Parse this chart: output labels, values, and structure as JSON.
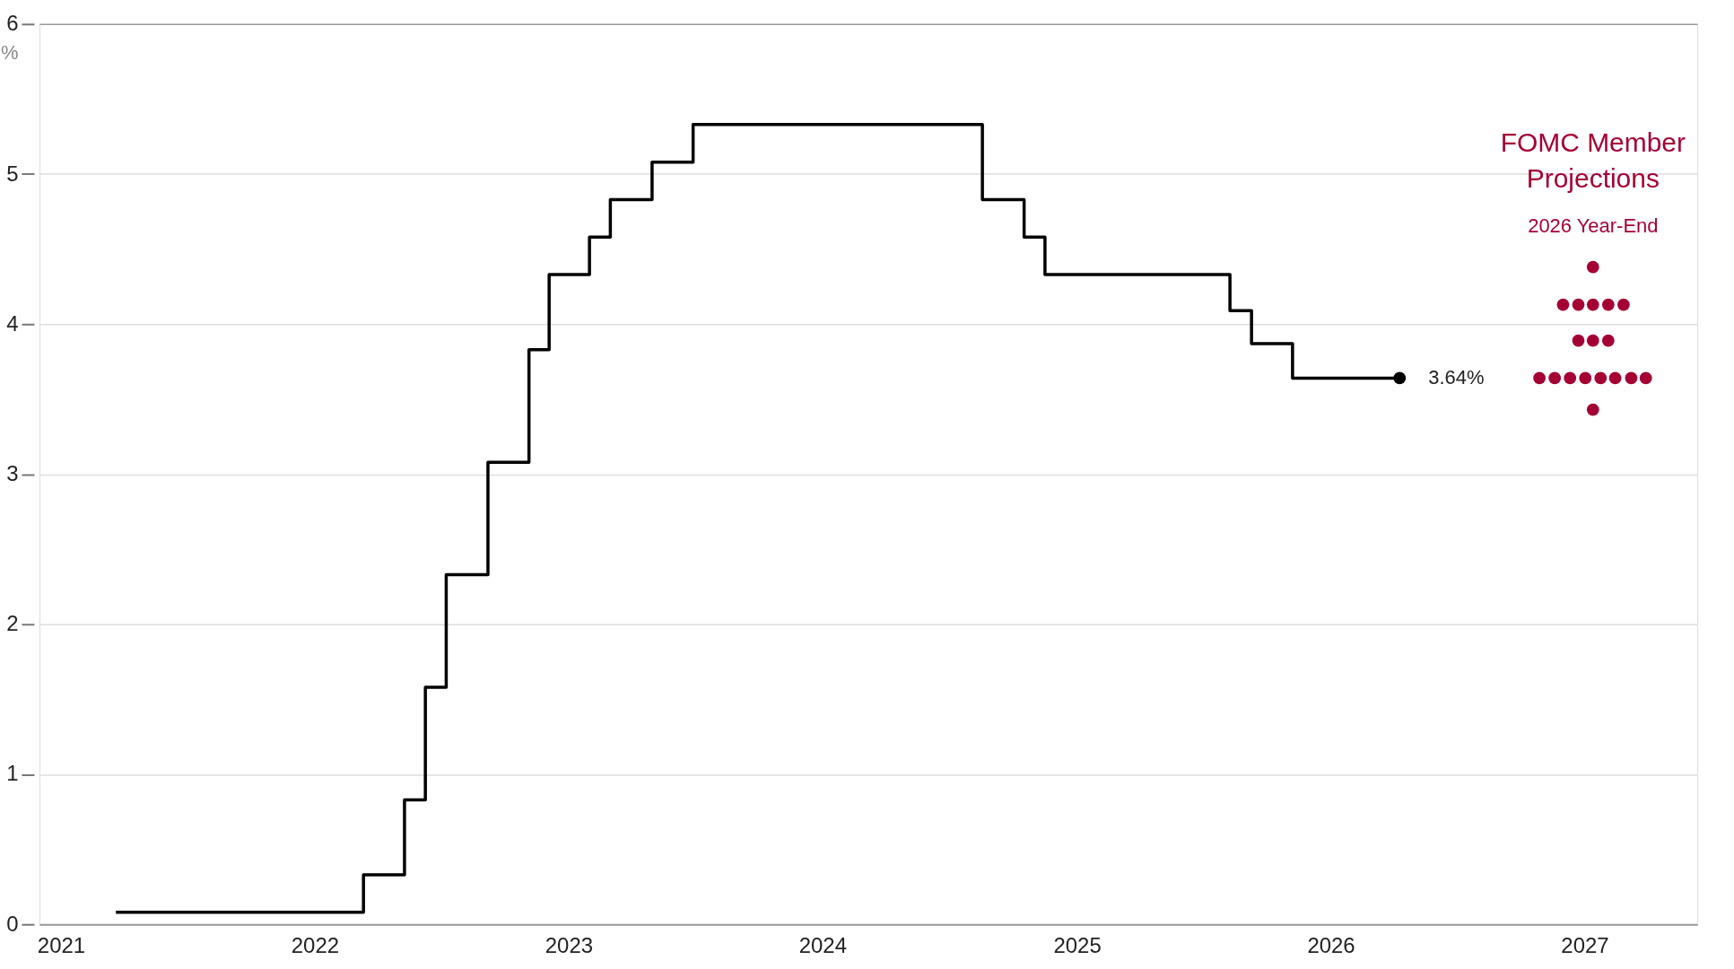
{
  "chart_data": {
    "type": "step",
    "ylabel": "%",
    "xlim": [
      "2020-12-01",
      "2027-06-12"
    ],
    "xticks": [
      "2021",
      "2022",
      "2023",
      "2024",
      "2025",
      "2026",
      "2027"
    ],
    "ylim": [
      0,
      6
    ],
    "yticks": [
      0,
      1,
      2,
      3,
      4,
      5,
      6
    ],
    "grid": "y",
    "series": [
      {
        "color": "#000000",
        "x": [
          "2021-03-21",
          "2022-03-12",
          "2022-05-10",
          "2022-06-09",
          "2022-07-09",
          "2022-09-07",
          "2022-11-05",
          "2022-12-04",
          "2023-01-31",
          "2023-03-02",
          "2023-05-01",
          "2023-06-29",
          "2024-08-18",
          "2024-10-17",
          "2024-11-16",
          "2025-08-09",
          "2025-09-09",
          "2025-11-07",
          "2026-04-10"
        ],
        "values": [
          0.08,
          0.33,
          0.83,
          1.58,
          2.33,
          3.08,
          3.83,
          4.33,
          4.58,
          4.83,
          5.08,
          5.33,
          4.83,
          4.58,
          4.33,
          4.09,
          3.87,
          3.64,
          3.64
        ]
      },
      {
        "type": "scatter",
        "marker": "circle",
        "color": "#000000",
        "x": [
          "2026-04-10"
        ],
        "values": [
          3.64
        ]
      },
      {
        "type": "scatter",
        "marker": "circle",
        "name": "FOMC Member Projections",
        "color": "#a50034",
        "x": [
          "2027-01-13",
          "2026-12-01",
          "2026-12-23",
          "2027-01-13",
          "2027-02-04",
          "2027-02-26",
          "2026-12-23",
          "2027-01-13",
          "2027-02-04",
          "2026-10-28",
          "2026-11-19",
          "2026-12-11",
          "2027-01-02",
          "2027-01-24",
          "2027-02-14",
          "2027-03-09",
          "2027-03-30",
          "2027-01-13"
        ],
        "values": [
          4.38,
          4.13,
          4.13,
          4.13,
          4.13,
          4.13,
          3.89,
          3.89,
          3.89,
          3.64,
          3.64,
          3.64,
          3.64,
          3.64,
          3.64,
          3.64,
          3.64,
          3.43
        ]
      }
    ],
    "annotations": [
      "2026 Year-End",
      {
        "text": "3.64%",
        "x": "2026-04-10",
        "y": 3.64
      }
    ]
  }
}
